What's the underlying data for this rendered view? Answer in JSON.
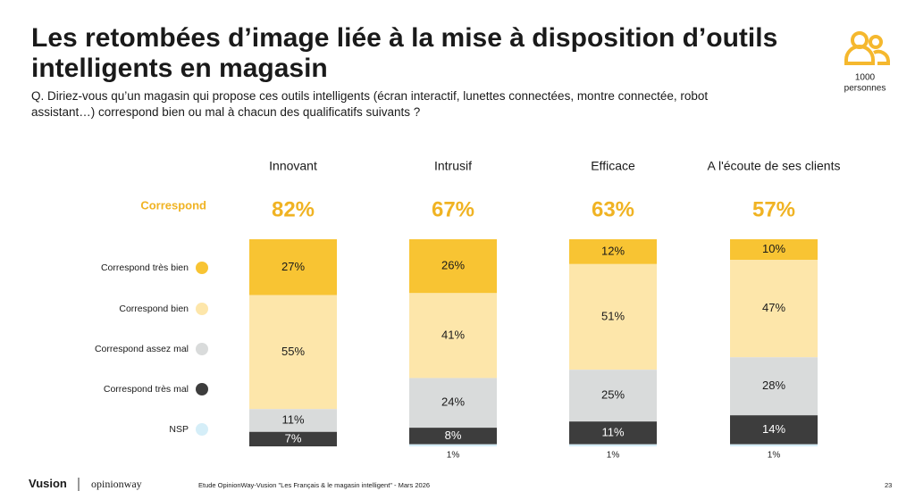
{
  "chart_data": {
    "type": "stacked_bar",
    "title": [
      "Les retombées d’image liée à la mise à disposition d’outils",
      "intelligents en magasin"
    ],
    "subtitle": [
      "Q. Diriez-vous qu’un magasin qui propose ces outils intelligents (écran interactif, lunettes connectées, montre connectée, robot",
      "assistant…) correspond bien ou mal à chacun des qualificatifs suivants ?"
    ],
    "categories": [
      "Innovant",
      "Intrusif",
      "Efficace",
      "A l'écoute de ses clients"
    ],
    "totals": {
      "name": "Correspond",
      "values": [
        82,
        67,
        63,
        57
      ],
      "value_labels": [
        "82%",
        "67%",
        "63%",
        "57%"
      ]
    },
    "series": [
      {
        "name": "Correspond très bien",
        "color": "#f8c433",
        "values": [
          27,
          26,
          12,
          10
        ],
        "value_labels": [
          "27%",
          "26%",
          "12%",
          "10%"
        ]
      },
      {
        "name": "Correspond bien",
        "color": "#fde6aa",
        "values": [
          55,
          41,
          51,
          47
        ],
        "value_labels": [
          "55%",
          "41%",
          "51%",
          "47%"
        ]
      },
      {
        "name": "Correspond assez mal",
        "color": "#d9dbdb",
        "values": [
          11,
          24,
          25,
          28
        ],
        "value_labels": [
          "11%",
          "24%",
          "25%",
          "28%"
        ]
      },
      {
        "name": "Correspond très mal",
        "color": "#3d3d3d",
        "values": [
          7,
          8,
          11,
          14
        ],
        "value_labels": [
          "7%",
          "8%",
          "11%",
          "14%"
        ]
      },
      {
        "name": "NSP",
        "color": "#d5eef8",
        "values": [
          null,
          1,
          1,
          1
        ],
        "value_labels": [
          null,
          "1%",
          "1%",
          "1%"
        ]
      }
    ]
  },
  "sample": [
    "1000",
    "personnes"
  ],
  "footer": {
    "brand1": "Vusion",
    "brand2": "opinionway",
    "source": "Etude OpinionWay-Vusion \"Les Français & le magasin intelligent\" - Mars 2026",
    "page": "23"
  }
}
